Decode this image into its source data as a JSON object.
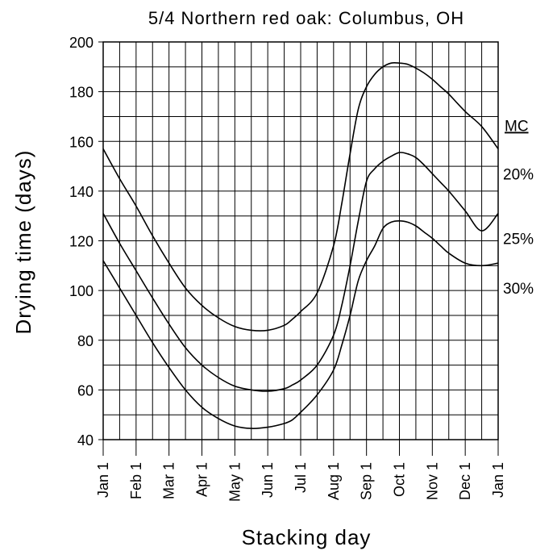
{
  "chart_data": {
    "type": "line",
    "title": "5/4 Northern red oak: Columbus, OH",
    "xlabel": "Stacking day",
    "ylabel": "Drying time (days)",
    "ylim": [
      40,
      200
    ],
    "xlim": [
      0,
      12
    ],
    "y_ticks": [
      40,
      60,
      80,
      100,
      120,
      140,
      160,
      180,
      200
    ],
    "x_tick_positions": [
      0,
      1,
      2,
      3,
      4,
      5,
      6,
      7,
      8,
      9,
      10,
      11,
      12
    ],
    "x_tick_labels": [
      "Jan 1",
      "Feb 1",
      "Mar 1",
      "Apr 1",
      "May 1",
      "Jun 1",
      "Jul 1",
      "Aug 1",
      "Sep 1",
      "Oct 1",
      "Nov 1",
      "Dec 1",
      "Jan 1"
    ],
    "grid": true,
    "legend_title": "MC",
    "x": [
      0,
      0.5,
      1,
      1.5,
      2,
      2.5,
      3,
      3.5,
      4,
      4.5,
      5,
      5.5,
      5.75,
      6,
      6.5,
      7,
      7.25,
      7.5,
      7.75,
      8,
      8.25,
      8.5,
      8.75,
      9,
      9.25,
      9.5,
      9.75,
      10,
      10.25,
      10.5,
      11,
      11.5,
      12
    ],
    "series": [
      {
        "name": "20%",
        "values": [
          157,
          145,
          134,
          122,
          111,
          101,
          94,
          89,
          85.5,
          84,
          84,
          86,
          88.5,
          91.5,
          99,
          118,
          135,
          155,
          173,
          182,
          187,
          190,
          191.5,
          191.5,
          191,
          189.5,
          187.5,
          185,
          182,
          179,
          172,
          166,
          157
        ]
      },
      {
        "name": "25%",
        "values": [
          131,
          119,
          108,
          97,
          86.5,
          77,
          70,
          65,
          61.5,
          60,
          59.5,
          60.5,
          62,
          64,
          70,
          82,
          94,
          110,
          128,
          144,
          149,
          152,
          154,
          155.5,
          155,
          153.5,
          150.5,
          147,
          143.5,
          140,
          132,
          124,
          131
        ]
      },
      {
        "name": "30%",
        "values": [
          112,
          101,
          90,
          79,
          69,
          60,
          53,
          48.5,
          45.5,
          44.5,
          45,
          46.5,
          48,
          51,
          58,
          68,
          78,
          90,
          104,
          112,
          118,
          125,
          127.5,
          128,
          127.5,
          126,
          123.5,
          121,
          118,
          115,
          111,
          110,
          111
        ]
      }
    ]
  }
}
